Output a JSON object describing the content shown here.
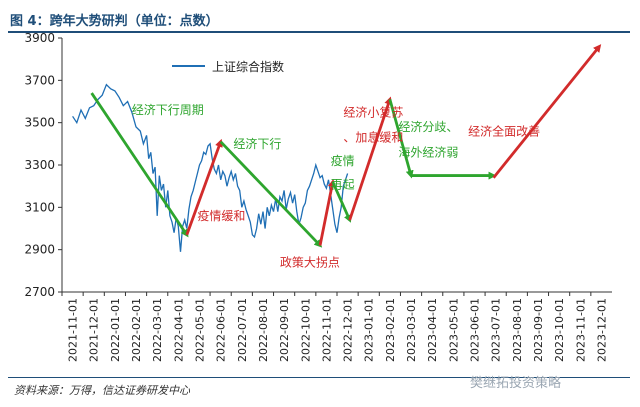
{
  "title": "图 4：跨年大势研判（单位：点数）",
  "source": "资料来源：万得，信达证券研发中心",
  "watermark": "樊继拓投资策略",
  "colors": {
    "series": "#1f6fb5",
    "green": "#2ea52e",
    "red": "#d22b2b",
    "header": "#1f4e79"
  },
  "chart_data": {
    "type": "line",
    "ylim": [
      2700,
      3900
    ],
    "yticks": [
      2700,
      2900,
      3100,
      3300,
      3500,
      3700,
      3900
    ],
    "categories": [
      "2021-11-01",
      "2021-12-01",
      "2022-01-01",
      "2022-02-01",
      "2022-03-01",
      "2022-04-01",
      "2022-05-01",
      "2022-06-01",
      "2022-07-01",
      "2022-08-01",
      "2022-09-01",
      "2022-10-01",
      "2022-11-01",
      "2022-12-01",
      "2023-01-01",
      "2023-02-01",
      "2023-03-01",
      "2023-04-01",
      "2023-05-01",
      "2023-06-01",
      "2023-07-01",
      "2023-08-01",
      "2023-09-01",
      "2023-10-01",
      "2023-11-01",
      "2023-12-01"
    ],
    "series": [
      {
        "name": "上证综合指数",
        "x": [
          0,
          0.2,
          0.4,
          0.6,
          0.8,
          1.0,
          1.2,
          1.4,
          1.6,
          1.8,
          2.0,
          2.2,
          2.4,
          2.6,
          2.8,
          3.0,
          3.2,
          3.35,
          3.5,
          3.6,
          3.7,
          3.8,
          3.9,
          4.0,
          4.1,
          4.2,
          4.3,
          4.4,
          4.5,
          4.6,
          4.7,
          4.8,
          4.9,
          5.0,
          5.1,
          5.2,
          5.3,
          5.4,
          5.5,
          5.6,
          5.7,
          5.8,
          5.9,
          6.0,
          6.1,
          6.2,
          6.3,
          6.4,
          6.5,
          6.6,
          6.7,
          6.8,
          6.9,
          7.0,
          7.1,
          7.2,
          7.3,
          7.4,
          7.5,
          7.6,
          7.7,
          7.8,
          7.9,
          8.0,
          8.1,
          8.2,
          8.3,
          8.4,
          8.5,
          8.6,
          8.7,
          8.8,
          8.9,
          9.0,
          9.1,
          9.2,
          9.3,
          9.4,
          9.5,
          9.6,
          9.7,
          9.8,
          9.9,
          10.0,
          10.1,
          10.2,
          10.3,
          10.4,
          10.5,
          10.6,
          10.7,
          10.8,
          10.9,
          11.0,
          11.1,
          11.2,
          11.3,
          11.4,
          11.5,
          11.6,
          11.7,
          11.8,
          11.9,
          12.0,
          12.1,
          12.2,
          12.3,
          12.4,
          12.5,
          12.6,
          12.7,
          12.8,
          12.9,
          13.0
        ],
        "values": [
          3530,
          3500,
          3560,
          3520,
          3570,
          3580,
          3610,
          3630,
          3680,
          3660,
          3650,
          3620,
          3580,
          3600,
          3550,
          3480,
          3460,
          3400,
          3440,
          3330,
          3360,
          3260,
          3290,
          3060,
          3250,
          3180,
          3210,
          3100,
          3180,
          3060,
          3030,
          2980,
          3050,
          3010,
          2890,
          3010,
          3040,
          3000,
          3090,
          3150,
          3180,
          3220,
          3260,
          3300,
          3320,
          3360,
          3350,
          3390,
          3400,
          3330,
          3280,
          3260,
          3300,
          3230,
          3270,
          3250,
          3200,
          3240,
          3270,
          3230,
          3260,
          3200,
          3180,
          3100,
          3130,
          3090,
          3060,
          3030,
          2970,
          2960,
          3000,
          3070,
          3020,
          3080,
          3000,
          3100,
          3060,
          3110,
          3080,
          3140,
          3080,
          3150,
          3130,
          3180,
          3090,
          3140,
          3170,
          3120,
          3160,
          3080,
          3020,
          3050,
          3100,
          3120,
          3180,
          3200,
          3230,
          3260,
          3300,
          3270,
          3240,
          3250,
          3210,
          3190,
          3230,
          3160,
          3090,
          3020,
          2980,
          3050,
          3100,
          3200,
          3230,
          3260
        ]
      }
    ],
    "legend": {
      "label": "上证综合指数",
      "position": "top"
    },
    "arrows": [
      {
        "color": "green",
        "from": [
          0.9,
          3640
        ],
        "to": [
          5.4,
          2970
        ]
      },
      {
        "color": "red",
        "from": [
          5.4,
          2970
        ],
        "to": [
          7.0,
          3410
        ]
      },
      {
        "color": "green",
        "from": [
          7.0,
          3410
        ],
        "to": [
          11.7,
          2920
        ]
      },
      {
        "color": "red",
        "from": [
          11.7,
          2920
        ],
        "to": [
          12.3,
          3220
        ]
      },
      {
        "color": "green",
        "from": [
          12.3,
          3220
        ],
        "to": [
          13.1,
          3040
        ]
      },
      {
        "color": "red",
        "from": [
          13.1,
          3040
        ],
        "to": [
          15.0,
          3610
        ]
      },
      {
        "color": "green",
        "from": [
          15.0,
          3610
        ],
        "to": [
          16.0,
          3250
        ]
      },
      {
        "color": "green",
        "from": [
          16.0,
          3250
        ],
        "to": [
          19.9,
          3250
        ]
      },
      {
        "color": "red",
        "from": [
          19.9,
          3240
        ],
        "to": [
          24.9,
          3860
        ]
      }
    ],
    "annotations": [
      {
        "text": "经济下行周期",
        "color": "green",
        "x": 2.8,
        "y": 3540
      },
      {
        "text": "疫情缓和",
        "color": "red",
        "x": 5.9,
        "y": 3040
      },
      {
        "text": "经济下行",
        "color": "green",
        "x": 7.6,
        "y": 3380
      },
      {
        "text": "政策大拐点",
        "color": "red",
        "x": 9.8,
        "y": 2820
      },
      {
        "text": "疫情",
        "color": "green",
        "x": 12.2,
        "y": 3300
      },
      {
        "text": "再起",
        "color": "green",
        "x": 12.2,
        "y": 3190
      },
      {
        "text": "经济小复苏",
        "color": "red",
        "x": 12.8,
        "y": 3530
      },
      {
        "text": "、加息缓和",
        "color": "red",
        "x": 12.8,
        "y": 3410
      },
      {
        "text": "经济分歧、",
        "color": "green",
        "x": 15.4,
        "y": 3460
      },
      {
        "text": "海外经济弱",
        "color": "green",
        "x": 15.4,
        "y": 3340
      },
      {
        "text": "经济全面改善",
        "color": "red",
        "x": 18.7,
        "y": 3440
      }
    ]
  }
}
